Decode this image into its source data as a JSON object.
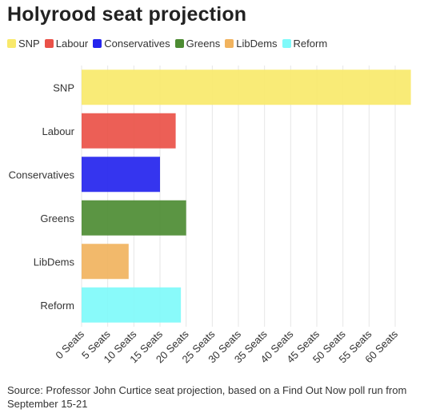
{
  "title": "Holyrood seat projection",
  "source": "Source: Professor John Curtice seat projection, based on a Find Out Now poll run from September 15-21",
  "chart_data": {
    "type": "bar",
    "orientation": "horizontal",
    "title": "Holyrood seat projection",
    "categories": [
      "SNP",
      "Labour",
      "Conservatives",
      "Greens",
      "LibDems",
      "Reform"
    ],
    "values": [
      63,
      18,
      15,
      20,
      9,
      19
    ],
    "colors": [
      "#f9e96b",
      "#ea5148",
      "#2424ee",
      "#4d8c33",
      "#f1b35e",
      "#7ffafa"
    ],
    "legend_entries": [
      "SNP",
      "Labour",
      "Conservatives",
      "Greens",
      "LibDems",
      "Reform"
    ],
    "legend_position": "top-left",
    "xlim": [
      0,
      60
    ],
    "xticks": [
      0,
      5,
      10,
      15,
      20,
      25,
      30,
      35,
      40,
      45,
      50,
      55,
      60
    ],
    "tick_suffix": " Seats",
    "grid": true
  }
}
